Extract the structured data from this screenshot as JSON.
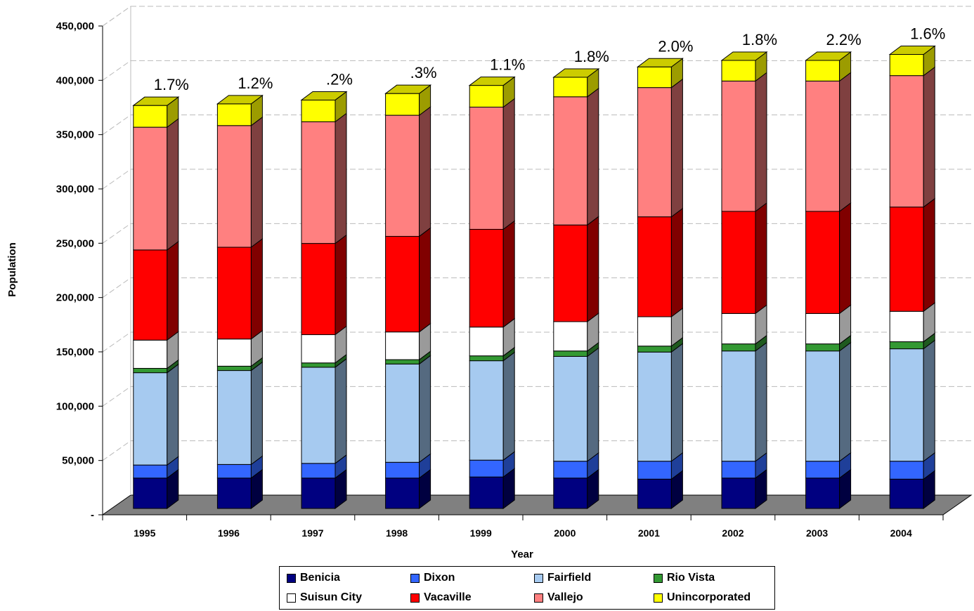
{
  "chart_data": {
    "type": "bar",
    "stacked": true,
    "three_d": true,
    "categories": [
      "1995",
      "1996",
      "1997",
      "1998",
      "1999",
      "2000",
      "2001",
      "2002",
      "2003",
      "2004"
    ],
    "series": [
      {
        "name": "Benicia",
        "color": "#000080",
        "values": [
          28000,
          28000,
          28000,
          28000,
          29000,
          28000,
          27000,
          28000,
          28000,
          27000
        ]
      },
      {
        "name": "Dixon",
        "color": "#3366FF",
        "values": [
          12000,
          12500,
          13500,
          14500,
          15500,
          15500,
          16500,
          15500,
          15500,
          16500
        ]
      },
      {
        "name": "Fairfield",
        "color": "#A6CAF0",
        "values": [
          85000,
          86500,
          88500,
          90500,
          91500,
          96500,
          100500,
          101500,
          101500,
          103500
        ]
      },
      {
        "name": "Rio Vista",
        "color": "#339933",
        "values": [
          4000,
          4000,
          4000,
          4000,
          4500,
          5000,
          5500,
          6500,
          6500,
          6500
        ]
      },
      {
        "name": "Suisun City",
        "color": "#FFFFFF",
        "values": [
          26000,
          25000,
          26000,
          25500,
          26500,
          27000,
          27000,
          28000,
          28000,
          28000
        ]
      },
      {
        "name": "Vacaville",
        "color": "#FF0000",
        "values": [
          83000,
          84500,
          84000,
          88000,
          90000,
          89000,
          92000,
          94000,
          94000,
          96000
        ]
      },
      {
        "name": "Vallejo",
        "color": "#FF8080",
        "values": [
          113000,
          112000,
          112000,
          111500,
          112500,
          118000,
          119000,
          120000,
          120000,
          121000
        ]
      },
      {
        "name": "Unincorporated",
        "color": "#FFFF00",
        "values": [
          20000,
          20000,
          20000,
          20000,
          20000,
          18000,
          19000,
          19000,
          19000,
          19500
        ]
      }
    ],
    "growth_labels": [
      "1.7%",
      "1.2%",
      ".2%",
      ".3%",
      "1.1%",
      "1.8%",
      "2.0%",
      "1.8%",
      "2.2%",
      "1.6%"
    ],
    "xlabel": "Year",
    "ylabel": "Population",
    "ylim": [
      0,
      450000
    ],
    "yticks": [
      0,
      50000,
      100000,
      150000,
      200000,
      250000,
      300000,
      350000,
      400000,
      450000
    ],
    "ytick_labels": [
      "-",
      "50,000",
      "100,000",
      "150,000",
      "200,000",
      "250,000",
      "300,000",
      "350,000",
      "400,000",
      "450,000"
    ],
    "grid": true,
    "legend_position": "bottom"
  }
}
